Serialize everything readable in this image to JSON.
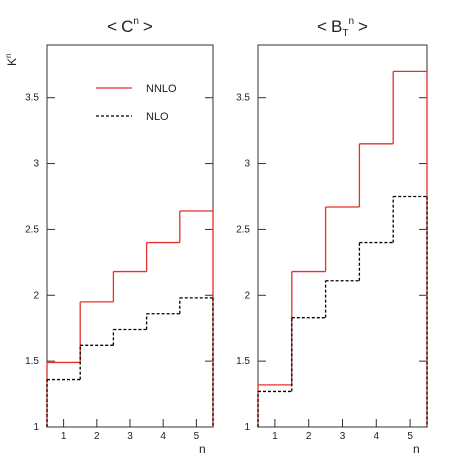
{
  "chart_data": [
    {
      "type": "step",
      "title": {
        "open": "<",
        "base": "C",
        "sup": "n",
        "close": ">"
      },
      "y_label": {
        "base": "K",
        "sup": "n"
      },
      "x_label": "n",
      "x": [
        1,
        2,
        3,
        4,
        5
      ],
      "xlim": [
        0.5,
        5.5
      ],
      "xticks": [
        1,
        2,
        3,
        4,
        5
      ],
      "ylim": [
        1,
        3.9
      ],
      "yticks": [
        1,
        1.5,
        2,
        2.5,
        3,
        3.5
      ],
      "legend": true,
      "series": [
        {
          "name": "NNLO",
          "color": "#e8302a",
          "dash": false,
          "values": [
            1.49,
            1.95,
            2.18,
            2.4,
            2.64
          ]
        },
        {
          "name": "NLO",
          "color": "#000000",
          "dash": true,
          "values": [
            1.36,
            1.62,
            1.74,
            1.86,
            1.98
          ]
        }
      ]
    },
    {
      "type": "step",
      "title": {
        "open": "<",
        "base": "B",
        "sub": "T",
        "sup": "n",
        "close": ">"
      },
      "x_label": "n",
      "x": [
        1,
        2,
        3,
        4,
        5
      ],
      "xlim": [
        0.5,
        5.5
      ],
      "xticks": [
        1,
        2,
        3,
        4,
        5
      ],
      "ylim": [
        1,
        3.9
      ],
      "yticks": [
        1,
        1.5,
        2,
        2.5,
        3,
        3.5
      ],
      "legend": false,
      "series": [
        {
          "name": "NNLO",
          "color": "#e8302a",
          "dash": false,
          "values": [
            1.32,
            2.18,
            2.67,
            3.15,
            3.7
          ]
        },
        {
          "name": "NLO",
          "color": "#000000",
          "dash": true,
          "values": [
            1.27,
            1.83,
            2.11,
            2.4,
            2.75
          ]
        }
      ]
    }
  ]
}
